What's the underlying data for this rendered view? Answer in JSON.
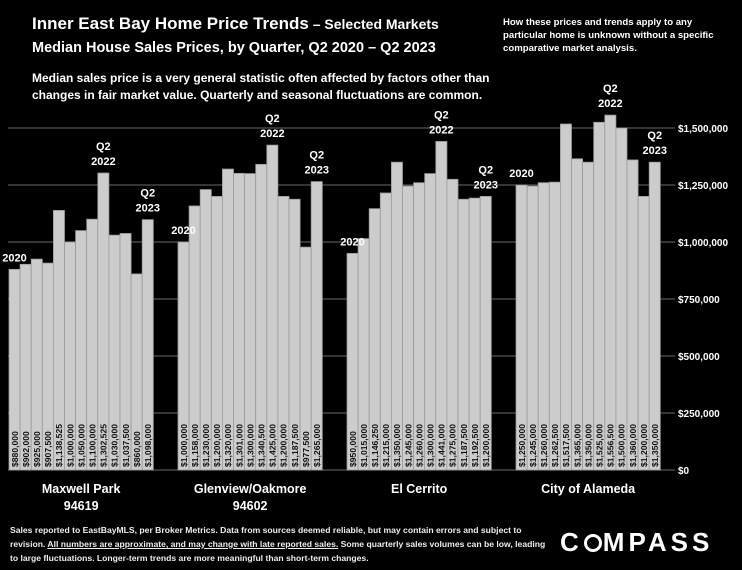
{
  "header": {
    "title": "Inner East Bay Home Price Trends",
    "title_suffix": " – Selected Markets",
    "subtitle": "Median House Sales Prices, by Quarter, Q2 2020 – Q2 2023",
    "description": "Median sales price is a very general statistic often affected by factors other than changes in fair market value. Quarterly and seasonal fluctuations are common.",
    "note": "How these prices and trends apply to any particular home is unknown without a specific comparative market analysis."
  },
  "footer": {
    "text_1": "Sales reported to EastBayMLS, per Broker Metrics. Data from sources deemed reliable, but may contain errors and subject to revision. ",
    "text_underlined": "All numbers are approximate, and may change with late reported sales.",
    "text_2": " Some quarterly sales volumes can be low, leading to large fluctuations. Longer-term trends are more meaningful than short-term changes."
  },
  "logo": {
    "text_pre": "C",
    "text_post": "MPASS"
  },
  "colors": {
    "background": "#000000",
    "bar": "#cccccc",
    "bar_edge": "#9a9a9a",
    "grid": "#6a6a6a"
  },
  "chart_data": {
    "type": "bar",
    "ylim": [
      0,
      1750000
    ],
    "yticks": [
      {
        "value": 0,
        "label": "$0"
      },
      {
        "value": 250000,
        "label": "$250,000"
      },
      {
        "value": 500000,
        "label": "$500,000"
      },
      {
        "value": 750000,
        "label": "$750,000"
      },
      {
        "value": 1000000,
        "label": "$1,000,000"
      },
      {
        "value": 1250000,
        "label": "$1,250,000"
      },
      {
        "value": 1500000,
        "label": "$1,500,000"
      }
    ],
    "grid": true,
    "quarters": [
      "Q2 2020",
      "Q3 2020",
      "Q4 2020",
      "Q1 2021",
      "Q2 2021",
      "Q3 2021",
      "Q4 2021",
      "Q1 2022",
      "Q2 2022",
      "Q3 2022",
      "Q4 2022",
      "Q1 2023",
      "Q2 2023"
    ],
    "markets": [
      {
        "name": "Maxwell Park",
        "name_line2": "94619",
        "values": [
          880000,
          902000,
          925000,
          907500,
          1138525,
          1000000,
          1050000,
          1100000,
          1302525,
          1030000,
          1037500,
          860000,
          1098000
        ],
        "labels": [
          "$880,000",
          "$902,000",
          "$925,000",
          "$907,500",
          "$1,138,525",
          "$1,000,000",
          "$1,050,000",
          "$1,100,000",
          "$1,302,525",
          "$1,030,000",
          "$1,037,500",
          "$860,000",
          "$1,098,000"
        ],
        "annotations": [
          {
            "index": 0,
            "lines": [
              "2020"
            ]
          },
          {
            "index": 8,
            "lines": [
              "Q2",
              "2022"
            ]
          },
          {
            "index": 12,
            "lines": [
              "Q2",
              "2023"
            ]
          }
        ]
      },
      {
        "name": "Glenview/Oakmore",
        "name_line2": "94602",
        "values": [
          1000000,
          1158000,
          1230000,
          1200000,
          1320000,
          1301000,
          1300000,
          1340500,
          1425000,
          1200000,
          1187500,
          977500,
          1265000
        ],
        "labels": [
          "$1,000,000",
          "$1,158,000",
          "$1,230,000",
          "$1,200,000",
          "$1,320,000",
          "$1,301,000",
          "$1,300,000",
          "$1,340,500",
          "$1,425,000",
          "$1,200,000",
          "$1,187,500",
          "$977,500",
          "$1,265,000"
        ],
        "annotations": [
          {
            "index": 0,
            "lines": [
              "2020"
            ]
          },
          {
            "index": 8,
            "lines": [
              "Q2",
              "2022"
            ]
          },
          {
            "index": 12,
            "lines": [
              "Q2",
              "2023"
            ]
          }
        ]
      },
      {
        "name": "El Cerrito",
        "name_line2": "",
        "values": [
          950000,
          1015000,
          1146250,
          1215000,
          1350000,
          1245000,
          1260000,
          1300000,
          1441000,
          1275000,
          1187500,
          1192500,
          1200000
        ],
        "labels": [
          "$950,000",
          "$1,015,000",
          "$1,146,250",
          "$1,215,000",
          "$1,350,000",
          "$1,245,000",
          "$1,260,000",
          "$1,300,000",
          "$1,441,000",
          "$1,275,000",
          "$1,187,500",
          "$1,192,500",
          "$1,200,000"
        ],
        "annotations": [
          {
            "index": 0,
            "lines": [
              "2020"
            ]
          },
          {
            "index": 8,
            "lines": [
              "Q2",
              "2022"
            ]
          },
          {
            "index": 12,
            "lines": [
              "Q2",
              "2023"
            ]
          }
        ]
      },
      {
        "name": "City of Alameda",
        "name_line2": "",
        "values": [
          1250000,
          1245000,
          1260000,
          1262500,
          1517500,
          1365000,
          1350000,
          1525000,
          1556500,
          1500000,
          1360000,
          1200000,
          1350000
        ],
        "labels": [
          "$1,250,000",
          "$1,245,000",
          "$1,260,000",
          "$1,262,500",
          "$1,517,500",
          "$1,365,000",
          "$1,350,000",
          "$1,525,000",
          "$1,556,500",
          "$1,500,000",
          "$1,360,000",
          "$1,200,000",
          "$1,350,000"
        ],
        "annotations": [
          {
            "index": 0,
            "lines": [
              "2020"
            ]
          },
          {
            "index": 8,
            "lines": [
              "Q2",
              "2022"
            ]
          },
          {
            "index": 12,
            "lines": [
              "Q2",
              "2023"
            ]
          }
        ]
      }
    ]
  }
}
